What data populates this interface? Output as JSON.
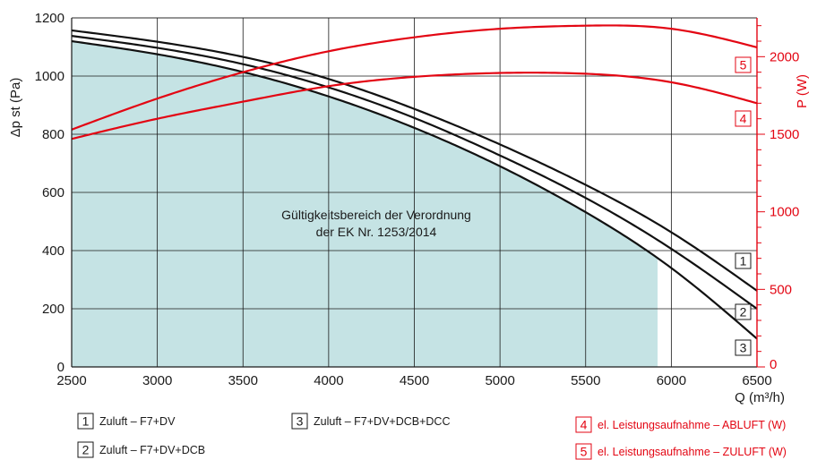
{
  "chart_data": {
    "type": "line",
    "title": "",
    "xlabel": "Q (m³/h)",
    "ylabel": "Δp st (Pa)",
    "y2label": "P (W)",
    "xlim": [
      2500,
      6500
    ],
    "ylim": [
      0,
      1200
    ],
    "y2lim": [
      0,
      2250
    ],
    "x_ticks": [
      "2500",
      "3000",
      "3500",
      "4000",
      "4500",
      "5000",
      "5500",
      "6000",
      "6500"
    ],
    "y_ticks": [
      "0",
      "200",
      "400",
      "600",
      "800",
      "1000",
      "1200"
    ],
    "y2_ticks": [
      "0",
      "500",
      "1000",
      "1500",
      "2000"
    ],
    "grid": true,
    "region": {
      "label_line1": "Gültigkeitsbereich der Verordnung",
      "label_line2": "der EK Nr. 1253/2014",
      "x_max": 5920,
      "color": "#c5e3e4",
      "upper_curve": "3"
    },
    "series": [
      {
        "id": "1",
        "axis": "left",
        "color": "#111111",
        "legend_label": "Zuluft – F7+DV",
        "x": [
          2500,
          3000,
          3500,
          4000,
          4500,
          5000,
          5500,
          6000,
          6500
        ],
        "values": [
          1157,
          1118,
          1066,
          990,
          887,
          765,
          626,
          463,
          262
        ]
      },
      {
        "id": "2",
        "axis": "left",
        "color": "#111111",
        "legend_label": "Zuluft – F7+DV+DCB",
        "x": [
          2500,
          3000,
          3500,
          4000,
          4500,
          5000,
          5500,
          6000,
          6500
        ],
        "values": [
          1138,
          1097,
          1041,
          961,
          856,
          727,
          581,
          406,
          200
        ]
      },
      {
        "id": "3",
        "axis": "left",
        "color": "#111111",
        "legend_label": "Zuluft – F7+DV+DCB+DCC",
        "x": [
          2500,
          3000,
          3500,
          4000,
          4500,
          5000,
          5500,
          6000,
          6500
        ],
        "values": [
          1120,
          1075,
          1014,
          930,
          822,
          690,
          532,
          340,
          97
        ]
      },
      {
        "id": "4",
        "axis": "right",
        "color": "#e30613",
        "legend_label": "el. Leistungsaufnahme – ABLUFT (W)",
        "x": [
          2500,
          3000,
          3500,
          4000,
          4500,
          5000,
          5500,
          6000,
          6500
        ],
        "values": [
          1470,
          1600,
          1710,
          1810,
          1870,
          1895,
          1890,
          1835,
          1700
        ]
      },
      {
        "id": "5",
        "axis": "right",
        "color": "#e30613",
        "legend_label": "el. Leistungsaufnahme – ZULUFT (W)",
        "x": [
          2500,
          3000,
          3500,
          4000,
          4500,
          5000,
          5500,
          6000,
          6500
        ],
        "values": [
          1530,
          1730,
          1900,
          2035,
          2125,
          2180,
          2200,
          2180,
          2060
        ]
      }
    ],
    "legend": [
      {
        "num": "1",
        "text": "Zuluft – F7+DV",
        "red": false
      },
      {
        "num": "2",
        "text": "Zuluft – F7+DV+DCB",
        "red": false
      },
      {
        "num": "3",
        "text": "Zuluft – F7+DV+DCB+DCC",
        "red": false
      },
      {
        "num": "4",
        "text": "el. Leistungsaufnahme – ABLUFT (W)",
        "red": true
      },
      {
        "num": "5",
        "text": "el. Leistungsaufnahme – ZULUFT (W)",
        "red": true
      }
    ],
    "curve_tags": [
      "1",
      "2",
      "3",
      "4",
      "5"
    ]
  }
}
